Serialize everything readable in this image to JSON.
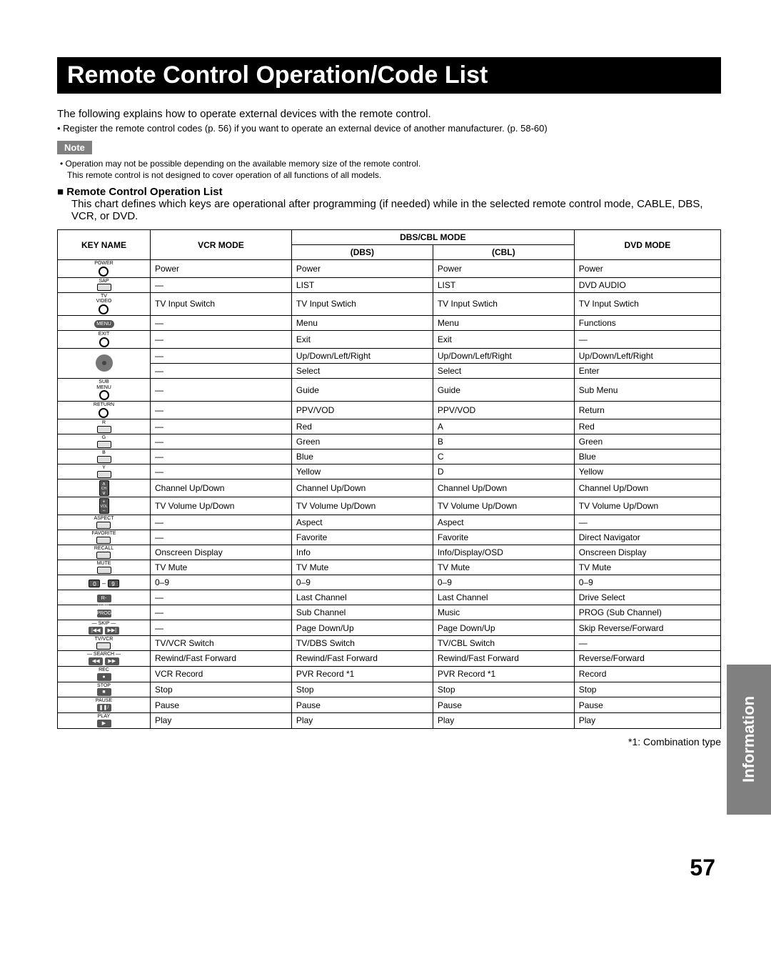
{
  "title": "Remote Control Operation/Code List",
  "intro1": "The following explains how to operate external devices with the remote control.",
  "intro2": "• Register the remote control codes (p. 56) if you want to operate an external device of another manufacturer. (p. 58-60)",
  "note_label": "Note",
  "notes": [
    "Operation may not be possible depending on the available memory size of the remote control.",
    "This remote control is not designed to cover operation of all functions of all models."
  ],
  "section_header": "Remote Control Operation List",
  "section_desc": "This chart defines which keys are operational after programming (if needed) while in the selected remote control mode, CABLE, DBS, VCR, or DVD.",
  "table": {
    "header": {
      "key_name": "KEY NAME",
      "vcr_mode": "VCR MODE",
      "dbs_cbl_mode": "DBS/CBL MODE",
      "dbs": "(DBS)",
      "cbl": "(CBL)",
      "dvd_mode": "DVD MODE"
    },
    "rows": [
      {
        "key": "POWER",
        "vcr": "Power",
        "dbs": "Power",
        "cbl": "Power",
        "dvd": "Power"
      },
      {
        "key": "SAP",
        "vcr": "—",
        "dbs": "LIST",
        "cbl": "LIST",
        "dvd": "DVD AUDIO"
      },
      {
        "key": "TV/VIDEO",
        "vcr": "TV Input Switch",
        "dbs": "TV Input Swtich",
        "cbl": "TV Input Swtich",
        "dvd": "TV Input Swtich"
      },
      {
        "key": "MENU",
        "vcr": "—",
        "dbs": "Menu",
        "cbl": "Menu",
        "dvd": "Functions"
      },
      {
        "key": "EXIT",
        "vcr": "—",
        "dbs": "Exit",
        "cbl": "Exit",
        "dvd": "—"
      },
      {
        "key": "DPAD",
        "vcr": "—",
        "dbs": "Up/Down/Left/Right",
        "cbl": "Up/Down/Left/Right",
        "dvd": "Up/Down/Left/Right"
      },
      {
        "key": "DPAD2",
        "vcr": "—",
        "dbs": "Select",
        "cbl": "Select",
        "dvd": "Enter"
      },
      {
        "key": "SUB MENU",
        "vcr": "—",
        "dbs": "Guide",
        "cbl": "Guide",
        "dvd": "Sub Menu"
      },
      {
        "key": "RETURN",
        "vcr": "—",
        "dbs": "PPV/VOD",
        "cbl": "PPV/VOD",
        "dvd": "Return"
      },
      {
        "key": "R",
        "vcr": "—",
        "dbs": "Red",
        "cbl": "A",
        "dvd": "Red"
      },
      {
        "key": "G",
        "vcr": "—",
        "dbs": "Green",
        "cbl": "B",
        "dvd": "Green"
      },
      {
        "key": "B",
        "vcr": "—",
        "dbs": "Blue",
        "cbl": "C",
        "dvd": "Blue"
      },
      {
        "key": "Y",
        "vcr": "—",
        "dbs": "Yellow",
        "cbl": "D",
        "dvd": "Yellow"
      },
      {
        "key": "CH",
        "vcr": "Channel Up/Down",
        "dbs": "Channel Up/Down",
        "cbl": "Channel Up/Down",
        "dvd": "Channel Up/Down"
      },
      {
        "key": "VOL",
        "vcr": "TV Volume Up/Down",
        "dbs": "TV Volume Up/Down",
        "cbl": "TV Volume Up/Down",
        "dvd": "TV Volume Up/Down"
      },
      {
        "key": "ASPECT",
        "vcr": "—",
        "dbs": "Aspect",
        "cbl": "Aspect",
        "dvd": "—"
      },
      {
        "key": "FAVORITE",
        "vcr": "—",
        "dbs": "Favorite",
        "cbl": "Favorite",
        "dvd": "Direct Navigator"
      },
      {
        "key": "RECALL",
        "vcr": "Onscreen Display",
        "dbs": "Info",
        "cbl": "Info/Display/OSD",
        "dvd": "Onscreen Display"
      },
      {
        "key": "MUTE",
        "vcr": "TV Mute",
        "dbs": "TV Mute",
        "cbl": "TV Mute",
        "dvd": "TV Mute"
      },
      {
        "key": "0-9",
        "vcr": "0–9",
        "dbs": "0–9",
        "cbl": "0–9",
        "dvd": "0–9"
      },
      {
        "key": "R-TUNE",
        "vcr": "—",
        "dbs": "Last Channel",
        "cbl": "Last Channel",
        "dvd": "Drive Select"
      },
      {
        "key": "PROG",
        "vcr": "—",
        "dbs": "Sub Channel",
        "cbl": "Music",
        "dvd": "PROG (Sub Channel)"
      },
      {
        "key": "SKIP",
        "vcr": "—",
        "dbs": "Page Down/Up",
        "cbl": "Page Down/Up",
        "dvd": "Skip Reverse/Forward"
      },
      {
        "key": "TV/VCR",
        "vcr": "TV/VCR Switch",
        "dbs": "TV/DBS Switch",
        "cbl": "TV/CBL Switch",
        "dvd": "—"
      },
      {
        "key": "SEARCH",
        "vcr": "Rewind/Fast Forward",
        "dbs": "Rewind/Fast Forward",
        "cbl": "Rewind/Fast Forward",
        "dvd": "Reverse/Forward"
      },
      {
        "key": "REC",
        "vcr": "VCR Record",
        "dbs": "PVR Record *1",
        "cbl": "PVR Record *1",
        "dvd": "Record"
      },
      {
        "key": "STOP",
        "vcr": "Stop",
        "dbs": "Stop",
        "cbl": "Stop",
        "dvd": "Stop"
      },
      {
        "key": "PAUSE",
        "vcr": "Pause",
        "dbs": "Pause",
        "cbl": "Pause",
        "dvd": "Pause"
      },
      {
        "key": "PLAY",
        "vcr": "Play",
        "dbs": "Play",
        "cbl": "Play",
        "dvd": "Play"
      }
    ]
  },
  "footnote": "*1: Combination type",
  "side_tab": "Information",
  "page_number": "57"
}
